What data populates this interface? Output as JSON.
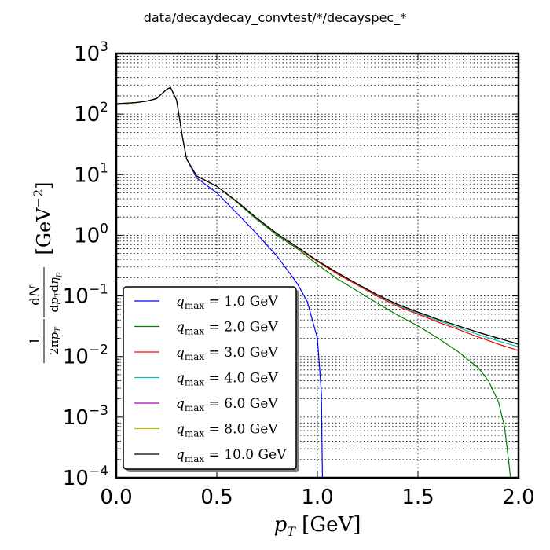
{
  "chart_data": {
    "type": "line",
    "title": "data/decaydecay_convtest/*/decayspec_*",
    "xlabel": "p_T [GeV]",
    "ylabel": "1/(2π p_T) dN/(dp_T dη_p) [GeV^-2]",
    "xlim": [
      0.0,
      2.0
    ],
    "ylim": [
      0.0001,
      1000
    ],
    "yscale": "log",
    "grid": true,
    "legend_position": "lower-left",
    "x_ticks": [
      "0.0",
      "0.5",
      "1.0",
      "1.5",
      "2.0"
    ],
    "y_tick_exponents": [
      "3",
      "2",
      "1",
      "0",
      "−1",
      "−2",
      "−3",
      "−4"
    ],
    "series": [
      {
        "name": "q_max = 1.0 GeV",
        "color": "#0000ff",
        "x": [
          0.04,
          0.1,
          0.15,
          0.2,
          0.25,
          0.27,
          0.3,
          0.33,
          0.35,
          0.4,
          0.5,
          0.6,
          0.7,
          0.8,
          0.9,
          0.95,
          1.0,
          1.02,
          1.025
        ],
        "y": [
          148,
          155,
          163,
          180,
          255,
          275,
          170,
          40,
          18,
          8.8,
          5,
          2.3,
          1.05,
          0.45,
          0.16,
          0.08,
          0.02,
          0.0025,
          0.0001
        ]
      },
      {
        "name": "q_max = 2.0 GeV",
        "color": "#008000",
        "x": [
          0.04,
          0.1,
          0.15,
          0.2,
          0.25,
          0.27,
          0.3,
          0.33,
          0.35,
          0.4,
          0.5,
          0.6,
          0.7,
          0.8,
          0.9,
          1.0,
          1.1,
          1.2,
          1.3,
          1.4,
          1.5,
          1.6,
          1.7,
          1.8,
          1.85,
          1.9,
          1.93,
          1.95,
          1.96
        ],
        "y": [
          148,
          155,
          163,
          180,
          255,
          275,
          170,
          40,
          18,
          9.5,
          6.4,
          3.5,
          1.8,
          1.0,
          0.6,
          0.33,
          0.19,
          0.12,
          0.075,
          0.048,
          0.032,
          0.02,
          0.012,
          0.0065,
          0.004,
          0.0018,
          0.0007,
          0.0002,
          0.0001
        ]
      },
      {
        "name": "q_max = 3.0 GeV",
        "color": "#ff0000",
        "x": [
          0.04,
          0.1,
          0.15,
          0.2,
          0.25,
          0.27,
          0.3,
          0.33,
          0.35,
          0.4,
          0.5,
          0.6,
          0.7,
          0.8,
          0.9,
          1.0,
          1.1,
          1.2,
          1.3,
          1.4,
          1.5,
          1.6,
          1.7,
          1.8,
          1.9,
          2.0
        ],
        "y": [
          148,
          155,
          163,
          180,
          255,
          275,
          170,
          40,
          18,
          9.5,
          6.4,
          3.6,
          1.9,
          1.05,
          0.63,
          0.37,
          0.23,
          0.15,
          0.098,
          0.067,
          0.05,
          0.037,
          0.028,
          0.021,
          0.016,
          0.0125
        ]
      },
      {
        "name": "q_max = 4.0 GeV",
        "color": "#00bfbf",
        "x": [
          0.04,
          0.1,
          0.15,
          0.2,
          0.25,
          0.27,
          0.3,
          0.33,
          0.35,
          0.4,
          0.5,
          0.6,
          0.7,
          0.8,
          0.9,
          1.0,
          1.1,
          1.2,
          1.3,
          1.4,
          1.5,
          1.6,
          1.7,
          1.8,
          1.9,
          2.0
        ],
        "y": [
          148,
          155,
          163,
          180,
          255,
          275,
          170,
          40,
          18,
          9.5,
          6.4,
          3.6,
          1.9,
          1.06,
          0.64,
          0.38,
          0.24,
          0.155,
          0.102,
          0.07,
          0.052,
          0.039,
          0.03,
          0.023,
          0.018,
          0.0145
        ]
      },
      {
        "name": "q_max = 6.0 GeV",
        "color": "#bf00bf",
        "x": [
          0.04,
          0.1,
          0.15,
          0.2,
          0.25,
          0.27,
          0.3,
          0.33,
          0.35,
          0.4,
          0.5,
          0.6,
          0.7,
          0.8,
          0.9,
          1.0,
          1.1,
          1.2,
          1.3,
          1.4,
          1.5,
          1.6,
          1.7,
          1.8,
          1.9,
          2.0
        ],
        "y": [
          148,
          155,
          163,
          180,
          255,
          275,
          170,
          40,
          18,
          9.5,
          6.4,
          3.6,
          1.9,
          1.06,
          0.64,
          0.38,
          0.24,
          0.157,
          0.104,
          0.072,
          0.054,
          0.041,
          0.032,
          0.025,
          0.02,
          0.016
        ]
      },
      {
        "name": "q_max = 8.0 GeV",
        "color": "#bfbf00",
        "x": [
          0.04,
          0.1,
          0.15,
          0.2,
          0.25,
          0.27,
          0.3,
          0.33,
          0.35,
          0.4,
          0.5,
          0.6,
          0.7,
          0.8,
          0.9,
          1.0,
          1.1,
          1.2,
          1.3,
          1.4,
          1.5,
          1.6,
          1.7,
          1.8,
          1.9,
          2.0
        ],
        "y": [
          148,
          155,
          163,
          180,
          255,
          275,
          170,
          40,
          18,
          9.5,
          6.4,
          3.6,
          1.9,
          1.06,
          0.64,
          0.38,
          0.24,
          0.157,
          0.104,
          0.072,
          0.054,
          0.041,
          0.032,
          0.025,
          0.02,
          0.016
        ]
      },
      {
        "name": "q_max = 10.0 GeV",
        "color": "#000000",
        "x": [
          0.0,
          0.1,
          0.15,
          0.2,
          0.25,
          0.27,
          0.3,
          0.33,
          0.35,
          0.4,
          0.5,
          0.6,
          0.7,
          0.8,
          0.9,
          1.0,
          1.1,
          1.2,
          1.3,
          1.4,
          1.5,
          1.6,
          1.7,
          1.8,
          1.9,
          2.0
        ],
        "y": [
          148,
          155,
          163,
          180,
          255,
          275,
          170,
          40,
          18,
          9.5,
          6.4,
          3.6,
          1.9,
          1.06,
          0.64,
          0.38,
          0.24,
          0.157,
          0.104,
          0.072,
          0.054,
          0.041,
          0.032,
          0.025,
          0.02,
          0.016
        ]
      }
    ]
  }
}
